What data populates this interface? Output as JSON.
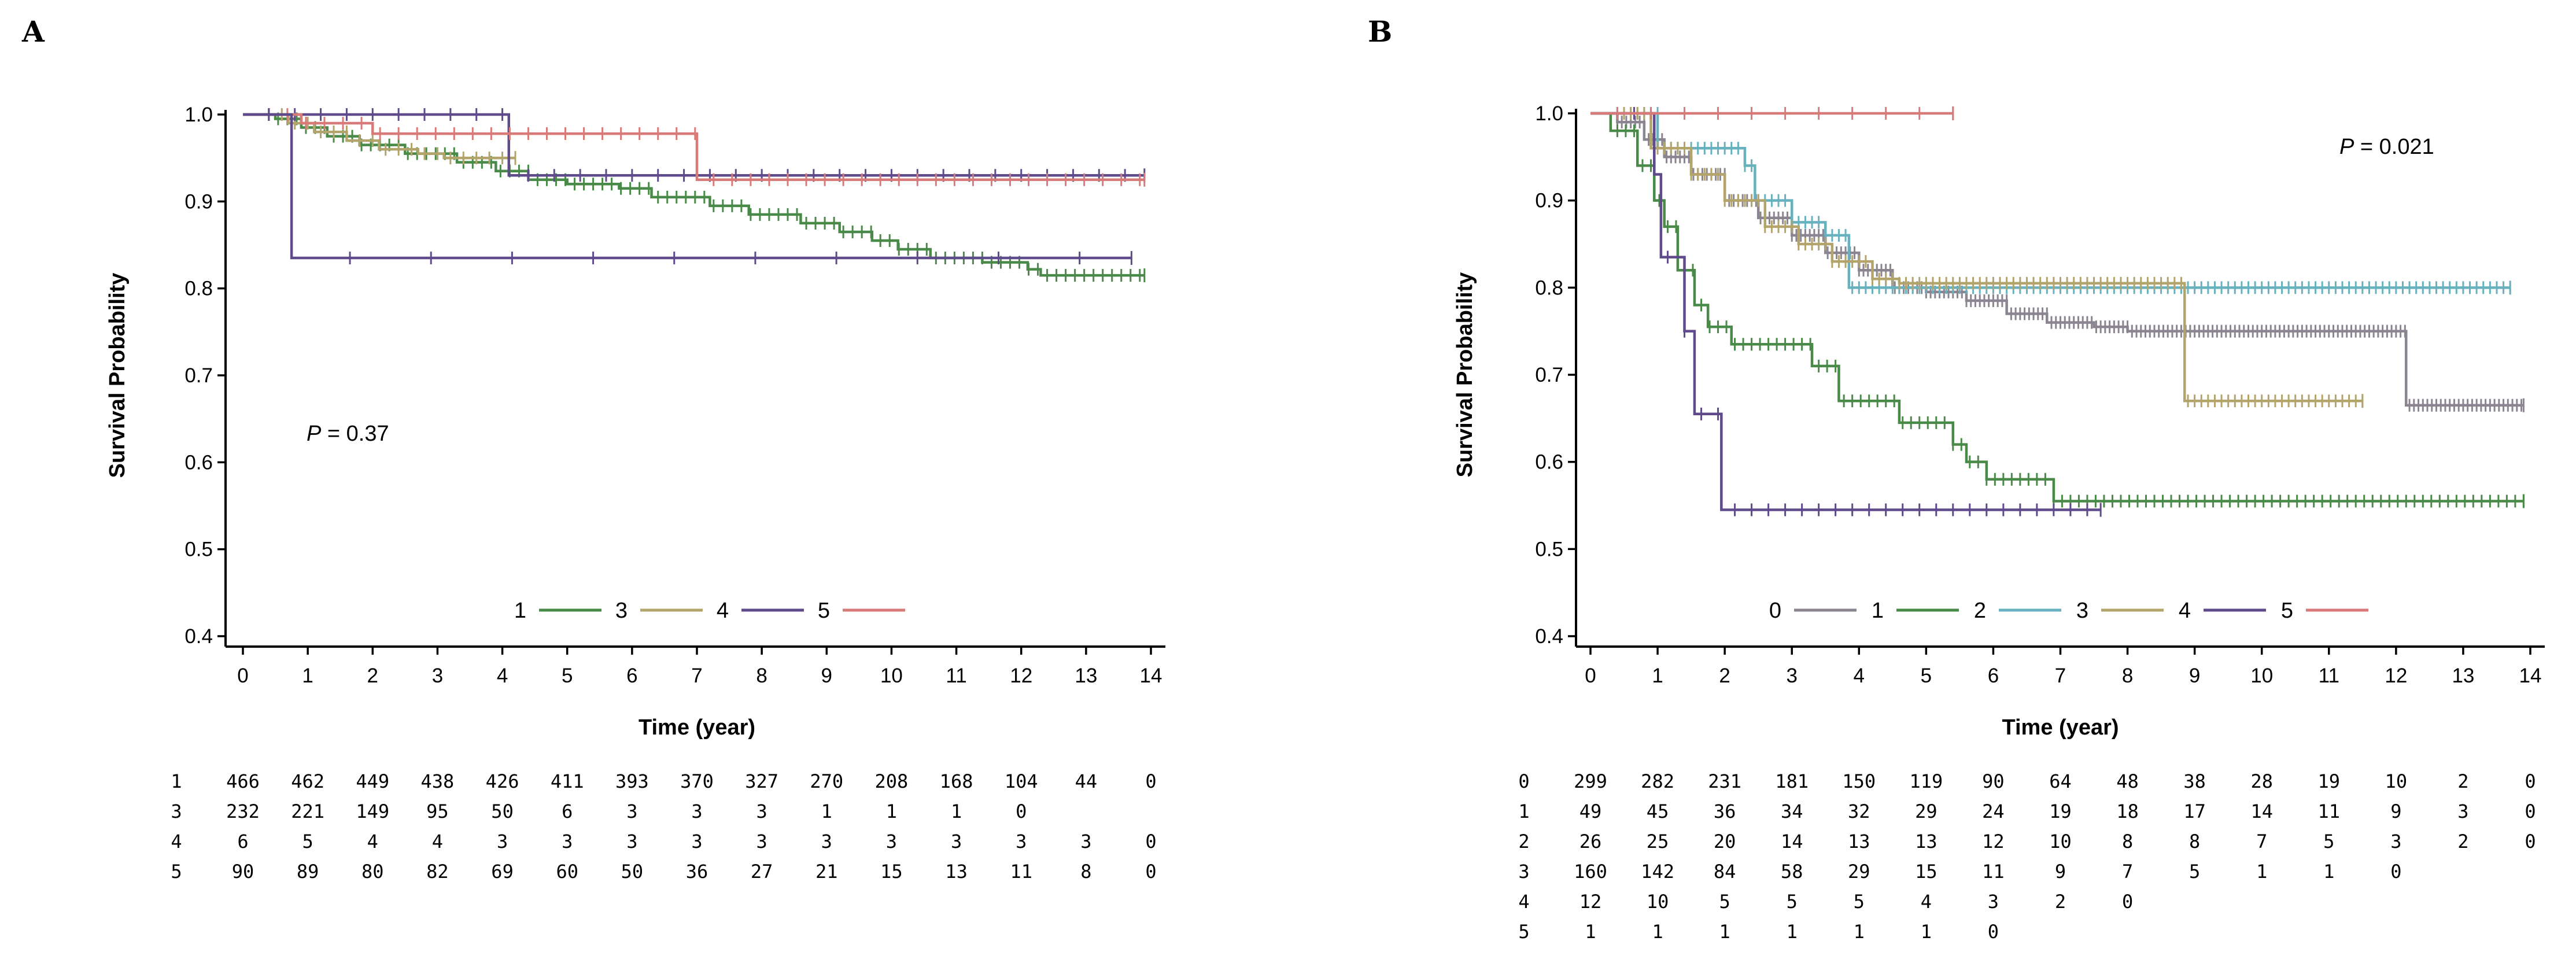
{
  "panels": [
    {
      "letter": "A",
      "pvalue_prefix": "P",
      "pvalue_rest": " = 0.37"
    },
    {
      "letter": "B",
      "pvalue_prefix": "P",
      "pvalue_rest": " = 0.021"
    }
  ],
  "colors": {
    "0": "#8a8590",
    "1": "#4a8a48",
    "2": "#68b2bf",
    "3": "#b3a46c",
    "4": "#5f4a8b",
    "5": "#d77a78"
  },
  "chart_data": [
    {
      "type": "line",
      "title": "",
      "xlabel": "Time (year)",
      "ylabel": "Survival Probability",
      "xlim": [
        0,
        14
      ],
      "ylim": [
        0.4,
        1.0
      ],
      "xticks": [
        0,
        1,
        2,
        3,
        4,
        5,
        6,
        7,
        8,
        9,
        10,
        11,
        12,
        13,
        14
      ],
      "yticks": [
        "0.4",
        "0.5",
        "0.6",
        "0.7",
        "0.8",
        "0.9",
        "1.0"
      ],
      "pvalue": "0.37",
      "legend_placement": "bottom-center",
      "series": [
        {
          "name": "1",
          "color_key": "1",
          "end": 13.9,
          "censor_density": 0.7,
          "steps": [
            [
              0,
              1.0
            ],
            [
              0.5,
              0.995
            ],
            [
              0.9,
              0.985
            ],
            [
              1.3,
              0.975
            ],
            [
              1.8,
              0.965
            ],
            [
              2.5,
              0.955
            ],
            [
              3.3,
              0.945
            ],
            [
              3.9,
              0.935
            ],
            [
              4.4,
              0.925
            ],
            [
              5.0,
              0.92
            ],
            [
              5.8,
              0.915
            ],
            [
              6.3,
              0.905
            ],
            [
              7.2,
              0.895
            ],
            [
              7.8,
              0.885
            ],
            [
              8.6,
              0.875
            ],
            [
              9.2,
              0.865
            ],
            [
              9.7,
              0.855
            ],
            [
              10.1,
              0.845
            ],
            [
              10.6,
              0.835
            ],
            [
              11.4,
              0.83
            ],
            [
              12.1,
              0.822
            ],
            [
              12.3,
              0.815
            ]
          ]
        },
        {
          "name": "3",
          "color_key": "3",
          "end": 4.2,
          "censor_density": 0.5,
          "steps": [
            [
              0,
              1.0
            ],
            [
              0.7,
              0.99
            ],
            [
              1.1,
              0.98
            ],
            [
              1.6,
              0.97
            ],
            [
              2.1,
              0.96
            ],
            [
              2.7,
              0.955
            ],
            [
              3.1,
              0.95
            ]
          ]
        },
        {
          "name": "4",
          "color_key": "4",
          "end": 13.9,
          "censor_density": 0.25,
          "steps": [
            [
              0,
              1.0
            ],
            [
              4.1,
              0.93
            ]
          ]
        },
        {
          "name": "5",
          "color_key": "5",
          "end": 13.9,
          "censor_density": 0.35,
          "steps": [
            [
              0,
              1.0
            ],
            [
              0.9,
              0.99
            ],
            [
              2.0,
              0.978
            ],
            [
              7.0,
              0.925
            ]
          ]
        },
        {
          "name": "",
          "color_key": "4",
          "end": 13.7,
          "censor_density": 0.08,
          "steps": [
            [
              0,
              1.0
            ],
            [
              0.75,
              0.835
            ]
          ]
        }
      ],
      "legend": [
        {
          "label": "1",
          "color_key": "1"
        },
        {
          "label": "3",
          "color_key": "3"
        },
        {
          "label": "4",
          "color_key": "4"
        },
        {
          "label": "5",
          "color_key": "5"
        }
      ],
      "risk_table": [
        {
          "group": "1",
          "counts": [
            "466",
            "462",
            "449",
            "438",
            "426",
            "411",
            "393",
            "370",
            "327",
            "270",
            "208",
            "168",
            "104",
            "44",
            "0"
          ]
        },
        {
          "group": "3",
          "counts": [
            "232",
            "221",
            "149",
            "95",
            "50",
            "6",
            "3",
            "3",
            "3",
            "1",
            "1",
            "1",
            "0",
            "",
            ""
          ]
        },
        {
          "group": "4",
          "counts": [
            "6",
            "5",
            "4",
            "4",
            "3",
            "3",
            "3",
            "3",
            "3",
            "3",
            "3",
            "3",
            "3",
            "3",
            "0"
          ]
        },
        {
          "group": "5",
          "counts": [
            "90",
            "89",
            "80",
            "82",
            "69",
            "60",
            "50",
            "36",
            "27",
            "21",
            "15",
            "13",
            "11",
            "8",
            "0"
          ]
        }
      ]
    },
    {
      "type": "line",
      "title": "",
      "xlabel": "Time (year)",
      "ylabel": "Survival Probability",
      "xlim": [
        0,
        14
      ],
      "ylim": [
        0.4,
        1.0
      ],
      "xticks": [
        0,
        1,
        2,
        3,
        4,
        5,
        6,
        7,
        8,
        9,
        10,
        11,
        12,
        13,
        14
      ],
      "yticks": [
        "0.4",
        "0.5",
        "0.6",
        "0.7",
        "0.8",
        "0.9",
        "1.0"
      ],
      "pvalue": "0.021",
      "legend_placement": "bottom-center",
      "series": [
        {
          "name": "0",
          "color_key": "0",
          "end": 13.9,
          "censor_density": 1.5,
          "steps": [
            [
              0,
              1.0
            ],
            [
              0.4,
              0.99
            ],
            [
              0.8,
              0.97
            ],
            [
              1.1,
              0.95
            ],
            [
              1.5,
              0.93
            ],
            [
              2.0,
              0.9
            ],
            [
              2.5,
              0.88
            ],
            [
              3.0,
              0.86
            ],
            [
              3.5,
              0.84
            ],
            [
              4.0,
              0.82
            ],
            [
              4.5,
              0.8
            ],
            [
              5.0,
              0.795
            ],
            [
              5.6,
              0.785
            ],
            [
              6.2,
              0.77
            ],
            [
              6.8,
              0.76
            ],
            [
              7.5,
              0.755
            ],
            [
              8.0,
              0.75
            ],
            [
              12.15,
              0.665
            ]
          ]
        },
        {
          "name": "1",
          "color_key": "1",
          "end": 13.9,
          "censor_density": 0.8,
          "steps": [
            [
              0,
              1.0
            ],
            [
              0.3,
              0.98
            ],
            [
              0.7,
              0.94
            ],
            [
              0.95,
              0.9
            ],
            [
              1.1,
              0.87
            ],
            [
              1.3,
              0.82
            ],
            [
              1.55,
              0.78
            ],
            [
              1.75,
              0.755
            ],
            [
              2.1,
              0.735
            ],
            [
              3.3,
              0.71
            ],
            [
              3.7,
              0.67
            ],
            [
              4.6,
              0.645
            ],
            [
              5.4,
              0.62
            ],
            [
              5.6,
              0.6
            ],
            [
              5.9,
              0.58
            ],
            [
              6.9,
              0.555
            ]
          ]
        },
        {
          "name": "2",
          "color_key": "2",
          "end": 13.7,
          "censor_density": 1.0,
          "steps": [
            [
              0,
              1.0
            ],
            [
              1.0,
              0.96
            ],
            [
              2.3,
              0.94
            ],
            [
              2.45,
              0.9
            ],
            [
              3.0,
              0.875
            ],
            [
              3.5,
              0.86
            ],
            [
              3.85,
              0.8
            ]
          ]
        },
        {
          "name": "3",
          "color_key": "3",
          "end": 11.5,
          "censor_density": 1.0,
          "steps": [
            [
              0,
              1.0
            ],
            [
              0.9,
              0.96
            ],
            [
              1.5,
              0.93
            ],
            [
              2.0,
              0.9
            ],
            [
              2.6,
              0.87
            ],
            [
              3.1,
              0.85
            ],
            [
              3.6,
              0.83
            ],
            [
              4.2,
              0.81
            ],
            [
              4.6,
              0.805
            ],
            [
              8.85,
              0.67
            ]
          ]
        },
        {
          "name": "4",
          "color_key": "4",
          "end": 7.6,
          "censor_density": 0.4,
          "steps": [
            [
              0,
              1.0
            ],
            [
              0.95,
              0.93
            ],
            [
              1.05,
              0.835
            ],
            [
              1.4,
              0.75
            ],
            [
              1.55,
              0.655
            ],
            [
              1.95,
              0.545
            ]
          ]
        },
        {
          "name": "5",
          "color_key": "5",
          "end": 5.4,
          "censor_density": 0.2,
          "steps": [
            [
              0,
              1.0
            ]
          ]
        }
      ],
      "legend": [
        {
          "label": "0",
          "color_key": "0"
        },
        {
          "label": "1",
          "color_key": "1"
        },
        {
          "label": "2",
          "color_key": "2"
        },
        {
          "label": "3",
          "color_key": "3"
        },
        {
          "label": "4",
          "color_key": "4"
        },
        {
          "label": "5",
          "color_key": "5"
        }
      ],
      "risk_table": [
        {
          "group": "0",
          "counts": [
            "299",
            "282",
            "231",
            "181",
            "150",
            "119",
            "90",
            "64",
            "48",
            "38",
            "28",
            "19",
            "10",
            "2",
            "0"
          ]
        },
        {
          "group": "1",
          "counts": [
            "49",
            "45",
            "36",
            "34",
            "32",
            "29",
            "24",
            "19",
            "18",
            "17",
            "14",
            "11",
            "9",
            "3",
            "0"
          ]
        },
        {
          "group": "2",
          "counts": [
            "26",
            "25",
            "20",
            "14",
            "13",
            "13",
            "12",
            "10",
            "8",
            "8",
            "7",
            "5",
            "3",
            "2",
            "0"
          ]
        },
        {
          "group": "3",
          "counts": [
            "160",
            "142",
            "84",
            "58",
            "29",
            "15",
            "11",
            "9",
            "7",
            "5",
            "1",
            "1",
            "0",
            "",
            ""
          ]
        },
        {
          "group": "4",
          "counts": [
            "12",
            "10",
            "5",
            "5",
            "5",
            "4",
            "3",
            "2",
            "0",
            "",
            "",
            "",
            "",
            "",
            ""
          ]
        },
        {
          "group": "5",
          "counts": [
            "1",
            "1",
            "1",
            "1",
            "1",
            "1",
            "0",
            "",
            "",
            "",
            "",
            "",
            "",
            "",
            ""
          ]
        }
      ]
    }
  ]
}
